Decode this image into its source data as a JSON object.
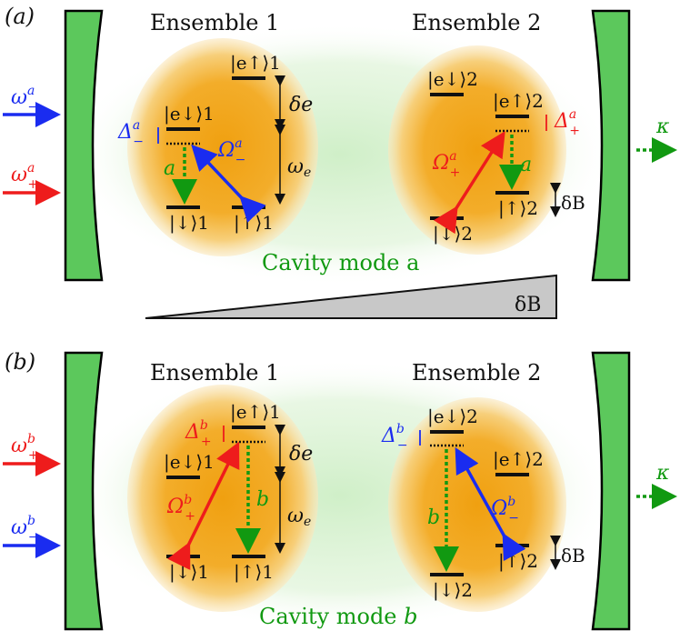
{
  "colors": {
    "mirror_fill": "#5cc85c",
    "mirror_stroke": "#000000",
    "mode_glow": "#d8f0d0",
    "ensemble_core": "#f0a818",
    "ensemble_halo": "#f8d890",
    "blue": "#1a2cf0",
    "red": "#ee1c1c",
    "green": "#119911",
    "wedge_fill": "#c8c8c8"
  },
  "panel_a": {
    "tag": "(a)",
    "ensemble1": "Ensemble 1",
    "ensemble2": "Ensemble 2",
    "cavity_label": "Cavity mode a",
    "wedge_label": "δB",
    "inputs": [
      {
        "sym": "ω",
        "sub": "−",
        "sup": "a",
        "color": "blue"
      },
      {
        "sym": "ω",
        "sub": "+",
        "sup": "a",
        "color": "red"
      }
    ],
    "output_kappa": "κ",
    "e1_levels": {
      "e_up": "|e↑⟩1",
      "e_down": "|e↓⟩1",
      "down": "|↓⟩1",
      "up": "|↑⟩1"
    },
    "e1_labels": {
      "delta_e": "δe",
      "omega_e": "ωe",
      "detuning": "Δ",
      "detuning_sub": "−",
      "detuning_sup": "a",
      "rabi": "Ω",
      "rabi_sub": "−",
      "rabi_sup": "a",
      "mode": "a"
    },
    "e2_levels": {
      "e_down": "|e↓⟩2",
      "e_up": "|e↑⟩2",
      "up": "|↑⟩2",
      "down": "|↓⟩2"
    },
    "e2_labels": {
      "detuning": "Δ",
      "detuning_sub": "+",
      "detuning_sup": "a",
      "rabi": "Ω",
      "rabi_sub": "+",
      "rabi_sup": "a",
      "mode": "a",
      "zeeman": "δB"
    }
  },
  "panel_b": {
    "tag": "(b)",
    "ensemble1": "Ensemble 1",
    "ensemble2": "Ensemble 2",
    "cavity_label_prefix": "Cavity mode ",
    "cavity_label_mode": "b",
    "inputs": [
      {
        "sym": "ω",
        "sub": "+",
        "sup": "b",
        "color": "red"
      },
      {
        "sym": "ω",
        "sub": "−",
        "sup": "b",
        "color": "blue"
      }
    ],
    "output_kappa": "κ",
    "e1_levels": {
      "e_up": "|e↑⟩1",
      "e_down": "|e↓⟩1",
      "down": "|↓⟩1",
      "up": "|↑⟩1"
    },
    "e1_labels": {
      "delta_e": "δe",
      "omega_e": "ωe",
      "detuning": "Δ",
      "detuning_sub": "+",
      "detuning_sup": "b",
      "rabi": "Ω",
      "rabi_sub": "+",
      "rabi_sup": "b",
      "mode": "b"
    },
    "e2_levels": {
      "e_down": "|e↓⟩2",
      "e_up": "|e↑⟩2",
      "up": "|↑⟩2",
      "down": "|↓⟩2"
    },
    "e2_labels": {
      "detuning": "Δ",
      "detuning_sub": "−",
      "detuning_sup": "b",
      "rabi": "Ω",
      "rabi_sub": "−",
      "rabi_sup": "b",
      "mode": "b",
      "zeeman": "δB"
    }
  }
}
